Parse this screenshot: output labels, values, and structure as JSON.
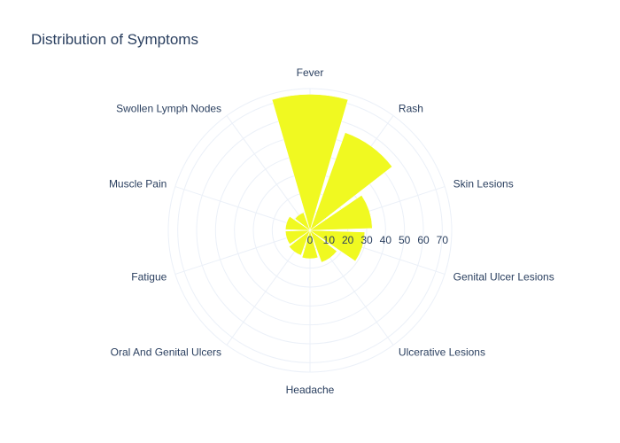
{
  "chart_data": {
    "type": "bar",
    "subtype": "polar",
    "title": "Distribution of Symptoms",
    "categories": [
      "Fever",
      "Rash",
      "Skin Lesions",
      "Genital Ulcer Lesions",
      "Ulcerative Lesions",
      "Headache",
      "Oral And Genital Ulcers",
      "Fatigue",
      "Muscle Pain",
      "Swollen Lymph Nodes"
    ],
    "values": [
      72,
      55,
      33,
      29,
      18,
      15,
      14,
      13,
      13,
      10
    ],
    "radial_ticks": [
      "0",
      "10",
      "20",
      "30",
      "40",
      "50",
      "60",
      "70"
    ],
    "radial_range": [
      0,
      75
    ],
    "angular_start": "top",
    "direction": "clockwise",
    "grid": true,
    "bar_color": "#f0f921",
    "grid_color": "#ebf0f8",
    "text_color": "#2a3f5f"
  }
}
